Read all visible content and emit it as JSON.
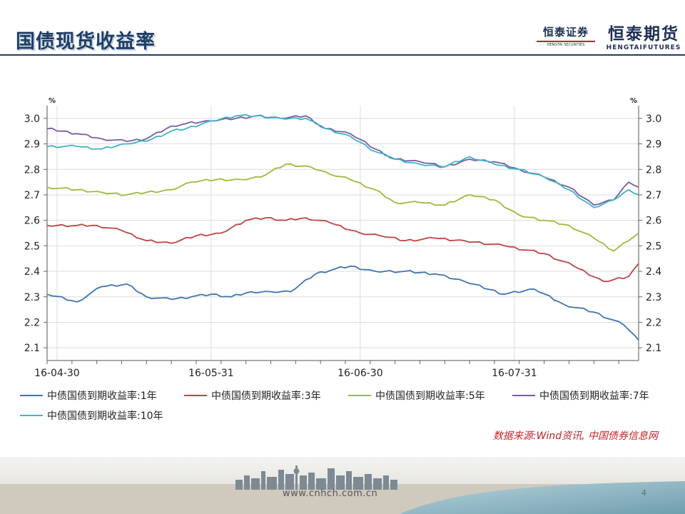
{
  "page": {
    "title": "国债现货收益率",
    "logo_left_cn": "恒泰证券",
    "logo_left_en": "HENGTAI SECURITIES",
    "logo_right_cn": "恒泰期货",
    "logo_right_en": "HENGTAIFUTURES",
    "source": "数据来源:Wind资讯, 中国债券信息网",
    "url": "www.cnhch.com.cn",
    "page_number": "4"
  },
  "colors": {
    "title": "#1f3e66",
    "series_1y": "#3f74b0",
    "series_3y": "#bf4444",
    "series_5y": "#9bbb3c",
    "series_7y": "#7a5da0",
    "series_10y": "#3fb3c8",
    "source": "#c0262c"
  },
  "chart_data": {
    "type": "line",
    "title": "",
    "ylabel_left": "%",
    "ylabel_right": "%",
    "ylim": [
      2.05,
      3.05
    ],
    "yticks": [
      "2.1",
      "2.2",
      "2.3",
      "2.4",
      "2.5",
      "2.6",
      "2.7",
      "2.8",
      "2.9",
      "3.0"
    ],
    "x_ticks": [
      "16-04-30",
      "16-05-31",
      "16-06-30",
      "16-07-31"
    ],
    "x_tick_index": [
      2,
      33,
      63,
      94
    ],
    "n_points": 120,
    "grid": true,
    "legend_position": "bottom",
    "series": [
      {
        "name": "中债国债到期收益率:1年",
        "color": "#3f74b0",
        "x": [
          0,
          6,
          11,
          16,
          20,
          25,
          29,
          33,
          37,
          41,
          45,
          49,
          54,
          58,
          61,
          66,
          72,
          78,
          84,
          92,
          98,
          104,
          110,
          116,
          119
        ],
        "y": [
          2.31,
          2.28,
          2.34,
          2.35,
          2.3,
          2.29,
          2.3,
          2.31,
          2.3,
          2.32,
          2.32,
          2.32,
          2.39,
          2.41,
          2.42,
          2.4,
          2.4,
          2.39,
          2.36,
          2.31,
          2.33,
          2.27,
          2.24,
          2.19,
          2.13
        ]
      },
      {
        "name": "中债国债到期收益率:3年",
        "color": "#bf4444",
        "x": [
          0,
          6,
          10,
          15,
          20,
          25,
          30,
          35,
          40,
          44,
          48,
          52,
          57,
          63,
          67,
          72,
          78,
          84,
          92,
          100,
          106,
          112,
          117,
          119
        ],
        "y": [
          2.58,
          2.58,
          2.58,
          2.56,
          2.52,
          2.51,
          2.54,
          2.55,
          2.6,
          2.61,
          2.6,
          2.61,
          2.59,
          2.55,
          2.54,
          2.52,
          2.53,
          2.52,
          2.5,
          2.47,
          2.42,
          2.36,
          2.38,
          2.43
        ]
      },
      {
        "name": "中债国债到期收益率:5年",
        "color": "#9bbb3c",
        "x": [
          0,
          6,
          11,
          16,
          20,
          25,
          29,
          34,
          39,
          43,
          48,
          53,
          57,
          61,
          66,
          70,
          75,
          80,
          85,
          90,
          95,
          100,
          105,
          110,
          114,
          117,
          119
        ],
        "y": [
          2.73,
          2.72,
          2.71,
          2.7,
          2.71,
          2.72,
          2.75,
          2.76,
          2.76,
          2.77,
          2.82,
          2.81,
          2.78,
          2.76,
          2.72,
          2.67,
          2.67,
          2.66,
          2.7,
          2.68,
          2.62,
          2.6,
          2.58,
          2.53,
          2.48,
          2.52,
          2.55
        ]
      },
      {
        "name": "中债国债到期收益率:7年",
        "color": "#7a5da0",
        "x": [
          0,
          6,
          11,
          16,
          20,
          25,
          28,
          33,
          38,
          42,
          47,
          52,
          56,
          61,
          66,
          70,
          75,
          80,
          85,
          90,
          95,
          100,
          105,
          110,
          114,
          117,
          119
        ],
        "y": [
          2.96,
          2.94,
          2.92,
          2.91,
          2.92,
          2.97,
          2.98,
          2.99,
          3.0,
          3.01,
          3.0,
          3.01,
          2.96,
          2.94,
          2.88,
          2.84,
          2.83,
          2.81,
          2.84,
          2.83,
          2.8,
          2.77,
          2.73,
          2.66,
          2.68,
          2.75,
          2.73
        ]
      },
      {
        "name": "中债国债到期收益率:10年",
        "color": "#3fb3c8",
        "x": [
          0,
          6,
          11,
          16,
          20,
          25,
          28,
          33,
          38,
          42,
          47,
          52,
          56,
          61,
          66,
          70,
          75,
          80,
          85,
          90,
          95,
          100,
          105,
          110,
          114,
          117,
          119
        ],
        "y": [
          2.89,
          2.89,
          2.88,
          2.9,
          2.91,
          2.95,
          2.96,
          2.99,
          3.01,
          3.01,
          3.0,
          3.0,
          2.96,
          2.93,
          2.87,
          2.84,
          2.82,
          2.81,
          2.85,
          2.82,
          2.8,
          2.77,
          2.72,
          2.65,
          2.68,
          2.72,
          2.7
        ]
      }
    ]
  }
}
